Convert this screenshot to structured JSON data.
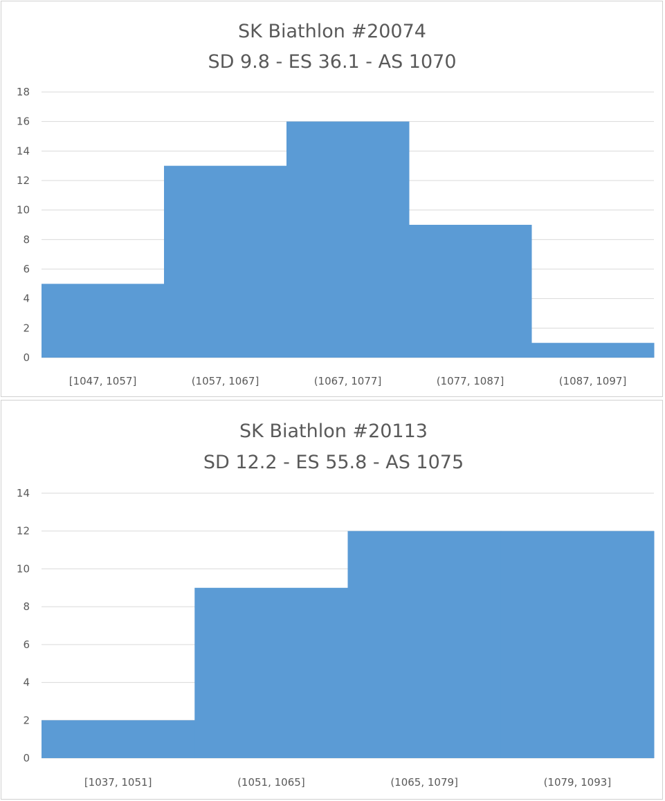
{
  "chart_data": [
    {
      "type": "bar",
      "title": "SK Biathlon #20074",
      "subtitle": "SD 9.8 - ES 36.1 - AS 1070",
      "categories": [
        "[1047, 1057]",
        "(1057, 1067]",
        "(1067, 1077]",
        "(1077, 1087]",
        "(1087, 1097]"
      ],
      "values": [
        5,
        13,
        16,
        9,
        1
      ],
      "ylim": [
        0,
        18
      ],
      "yticks": [
        0,
        2,
        4,
        6,
        8,
        10,
        12,
        14,
        16,
        18
      ],
      "grid": true,
      "color": "#5b9bd5"
    },
    {
      "type": "bar",
      "title": "SK Biathlon #20113",
      "subtitle": "SD 12.2 - ES 55.8 - AS 1075",
      "categories": [
        "[1037, 1051]",
        "(1051, 1065]",
        "(1065, 1079]",
        "(1079, 1093]"
      ],
      "values": [
        2,
        9,
        12,
        12
      ],
      "ylim": [
        0,
        14
      ],
      "yticks": [
        0,
        2,
        4,
        6,
        8,
        10,
        12,
        14
      ],
      "grid": true,
      "color": "#5b9bd5"
    }
  ]
}
